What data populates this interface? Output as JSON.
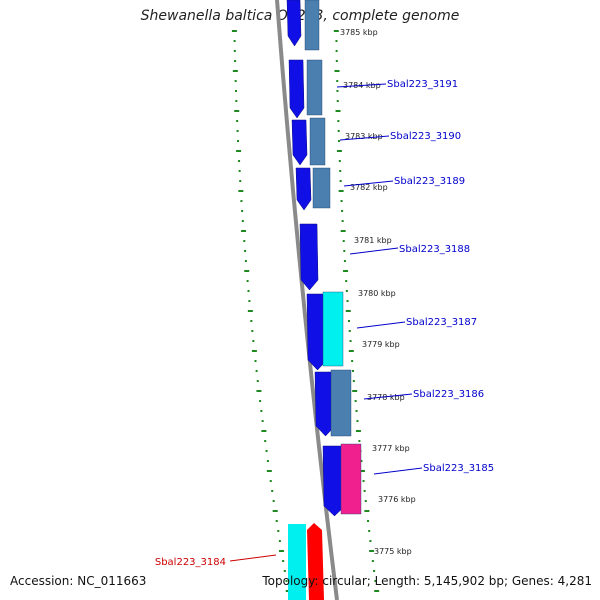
{
  "title": "Shewanella baltica OS223, complete genome",
  "footer": {
    "accession": "Accession: NC_011663",
    "summary": "Topology: circular; Length: 5,145,902 bp; Genes: 4,281"
  },
  "colors": {
    "cds_forward": "#1010e6",
    "cds_reverse": "#4a7fb0",
    "cyan": "#00f0f0",
    "pink": "#f0208f",
    "red": "#ff0000",
    "backbone": "#8a8a8a",
    "gc_skew": "#1f8a1f",
    "label_blue": "#0000cc",
    "label_red": "#cc0000"
  },
  "ticks": [
    {
      "label": "3785 kbp"
    },
    {
      "label": "3784 kbp"
    },
    {
      "label": "3783 kbp"
    },
    {
      "label": "3782 kbp"
    },
    {
      "label": "3781 kbp"
    },
    {
      "label": "3780 kbp"
    },
    {
      "label": "3779 kbp"
    },
    {
      "label": "3778 kbp"
    },
    {
      "label": "3777 kbp"
    },
    {
      "label": "3776 kbp"
    },
    {
      "label": "3775 kbp"
    }
  ],
  "gene_labels": [
    {
      "text": "Sbal223_3191"
    },
    {
      "text": "Sbal223_3190"
    },
    {
      "text": "Sbal223_3189"
    },
    {
      "text": "Sbal223_3188"
    },
    {
      "text": "Sbal223_3187"
    },
    {
      "text": "Sbal223_3186"
    },
    {
      "text": "Sbal223_3185"
    },
    {
      "text": "Sbal223_3184"
    }
  ]
}
